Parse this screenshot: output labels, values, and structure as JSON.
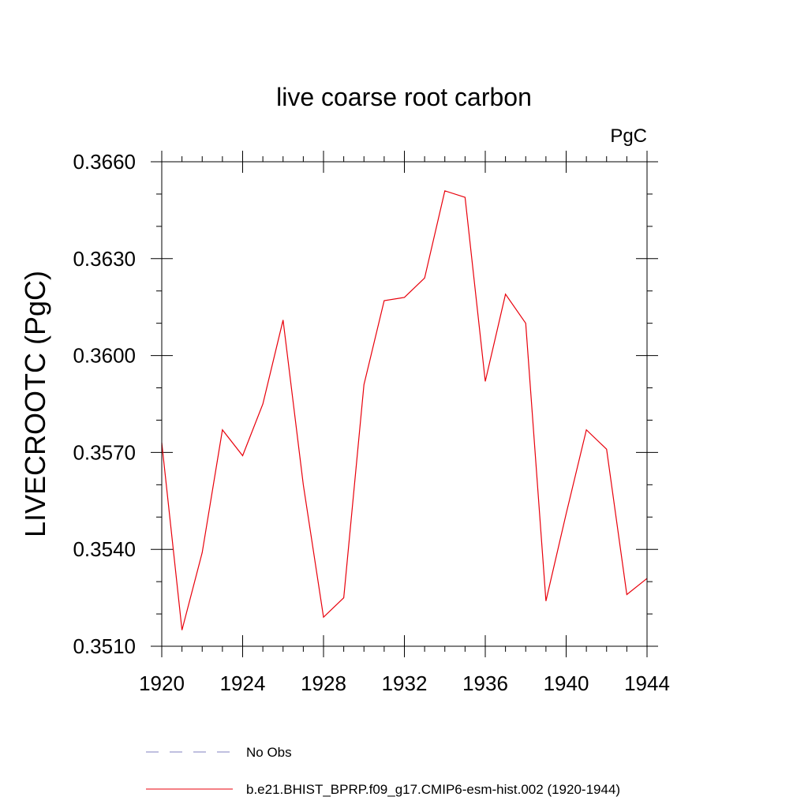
{
  "chart_data": {
    "type": "line",
    "title": "live coarse root carbon",
    "units_label": "PgC",
    "xlabel": "",
    "ylabel": "LIVECROOTC  (PgC)",
    "xlim": [
      1920,
      1944
    ],
    "ylim": [
      0.351,
      0.366
    ],
    "x_major_ticks": [
      1920,
      1924,
      1928,
      1932,
      1936,
      1940,
      1944
    ],
    "x_tick_labels": [
      "1920",
      "1924",
      "1928",
      "1932",
      "1936",
      "1940",
      "1944"
    ],
    "y_major_ticks": [
      0.351,
      0.354,
      0.357,
      0.36,
      0.363,
      0.366
    ],
    "y_tick_labels": [
      "0.3510",
      "0.3540",
      "0.3570",
      "0.3600",
      "0.3630",
      "0.3660"
    ],
    "x_minor_step": 1,
    "y_minor_step": 0.001,
    "grid": false,
    "series": [
      {
        "name": "b.e21.BHIST_BPRP.f09_g17.CMIP6-esm-hist.002 (1920-1944)",
        "color": "#e8000b",
        "style": "solid",
        "x": [
          1920,
          1921,
          1922,
          1923,
          1924,
          1925,
          1926,
          1927,
          1928,
          1929,
          1930,
          1931,
          1932,
          1933,
          1934,
          1935,
          1936,
          1937,
          1938,
          1939,
          1940,
          1941,
          1942,
          1943,
          1944
        ],
        "values": [
          0.3573,
          0.3515,
          0.3539,
          0.3577,
          0.3569,
          0.3585,
          0.3611,
          0.356,
          0.3519,
          0.3525,
          0.3591,
          0.3617,
          0.3618,
          0.3624,
          0.3651,
          0.3649,
          0.3592,
          0.3619,
          0.361,
          0.3524,
          0.3551,
          0.3577,
          0.3571,
          0.3526,
          0.3531
        ]
      }
    ],
    "legend": {
      "placement": "bottom",
      "entries": [
        {
          "label": "No Obs",
          "color": "#8080c0",
          "style": "dashed"
        },
        {
          "label": "b.e21.BHIST_BPRP.f09_g17.CMIP6-esm-hist.002 (1920-1944)",
          "color": "#e8000b",
          "style": "solid"
        }
      ]
    }
  }
}
